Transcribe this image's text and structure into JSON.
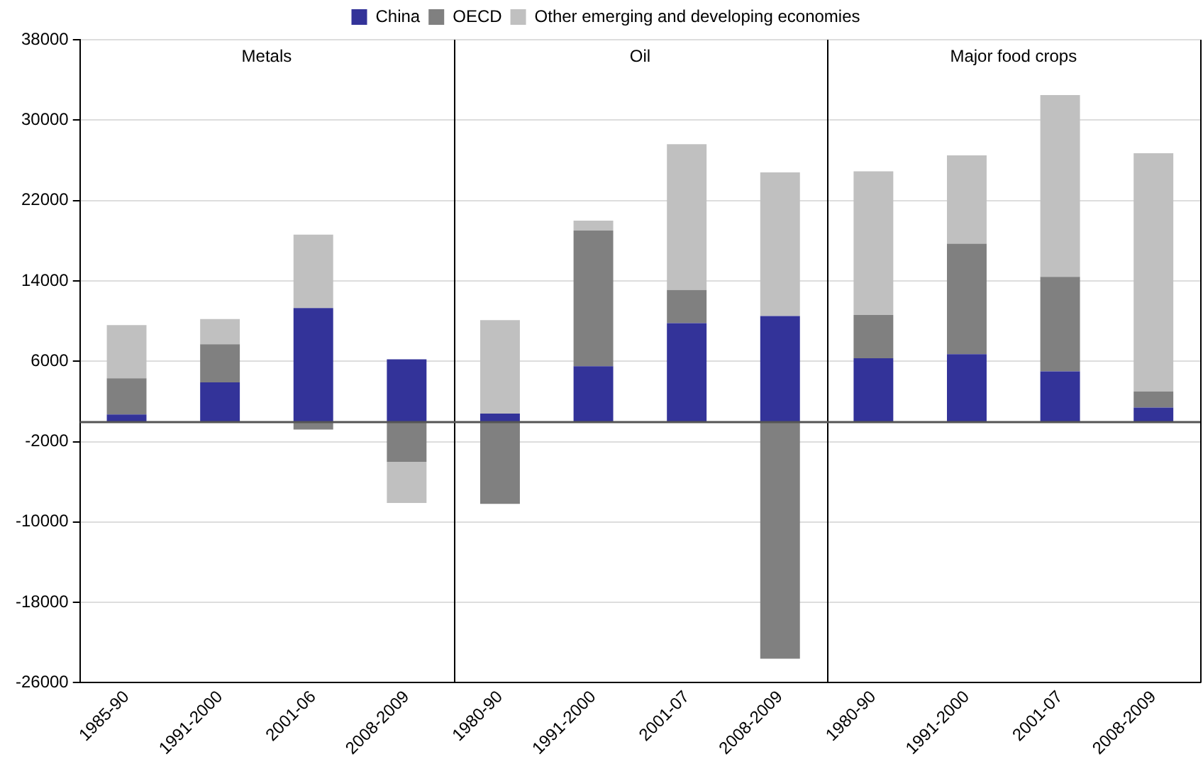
{
  "chart_data": {
    "type": "bar",
    "stacked": true,
    "categories": [
      "1985-90",
      "1991-2000",
      "2001-06",
      "2008-2009",
      "1980-90",
      "1991-2000",
      "2001-07",
      "2008-2009",
      "1980-90",
      "1991-2000",
      "2001-07",
      "2008-2009"
    ],
    "series": [
      {
        "name": "China",
        "color": "#333399",
        "values": [
          700,
          3900,
          11300,
          6200,
          800,
          5500,
          9800,
          10500,
          6300,
          6700,
          5000,
          1400
        ]
      },
      {
        "name": "OECD",
        "color": "#808080",
        "values": [
          3600,
          3800,
          -800,
          -4000,
          -8200,
          13500,
          3300,
          -23600,
          4300,
          11000,
          9400,
          1600
        ]
      },
      {
        "name": "Other emerging and developing economies",
        "color": "#c0c0c0",
        "values": [
          5300,
          2500,
          7300,
          -4100,
          9300,
          1000,
          14500,
          14300,
          14300,
          8800,
          18100,
          23700
        ]
      }
    ],
    "ylim": [
      -26000,
      38000
    ],
    "yticks": [
      -26000,
      -18000,
      -10000,
      -2000,
      6000,
      14000,
      22000,
      30000,
      38000
    ],
    "grid": "y",
    "legend": "top",
    "annotations": [
      "Metals",
      "Oil",
      "Major food crops"
    ]
  }
}
